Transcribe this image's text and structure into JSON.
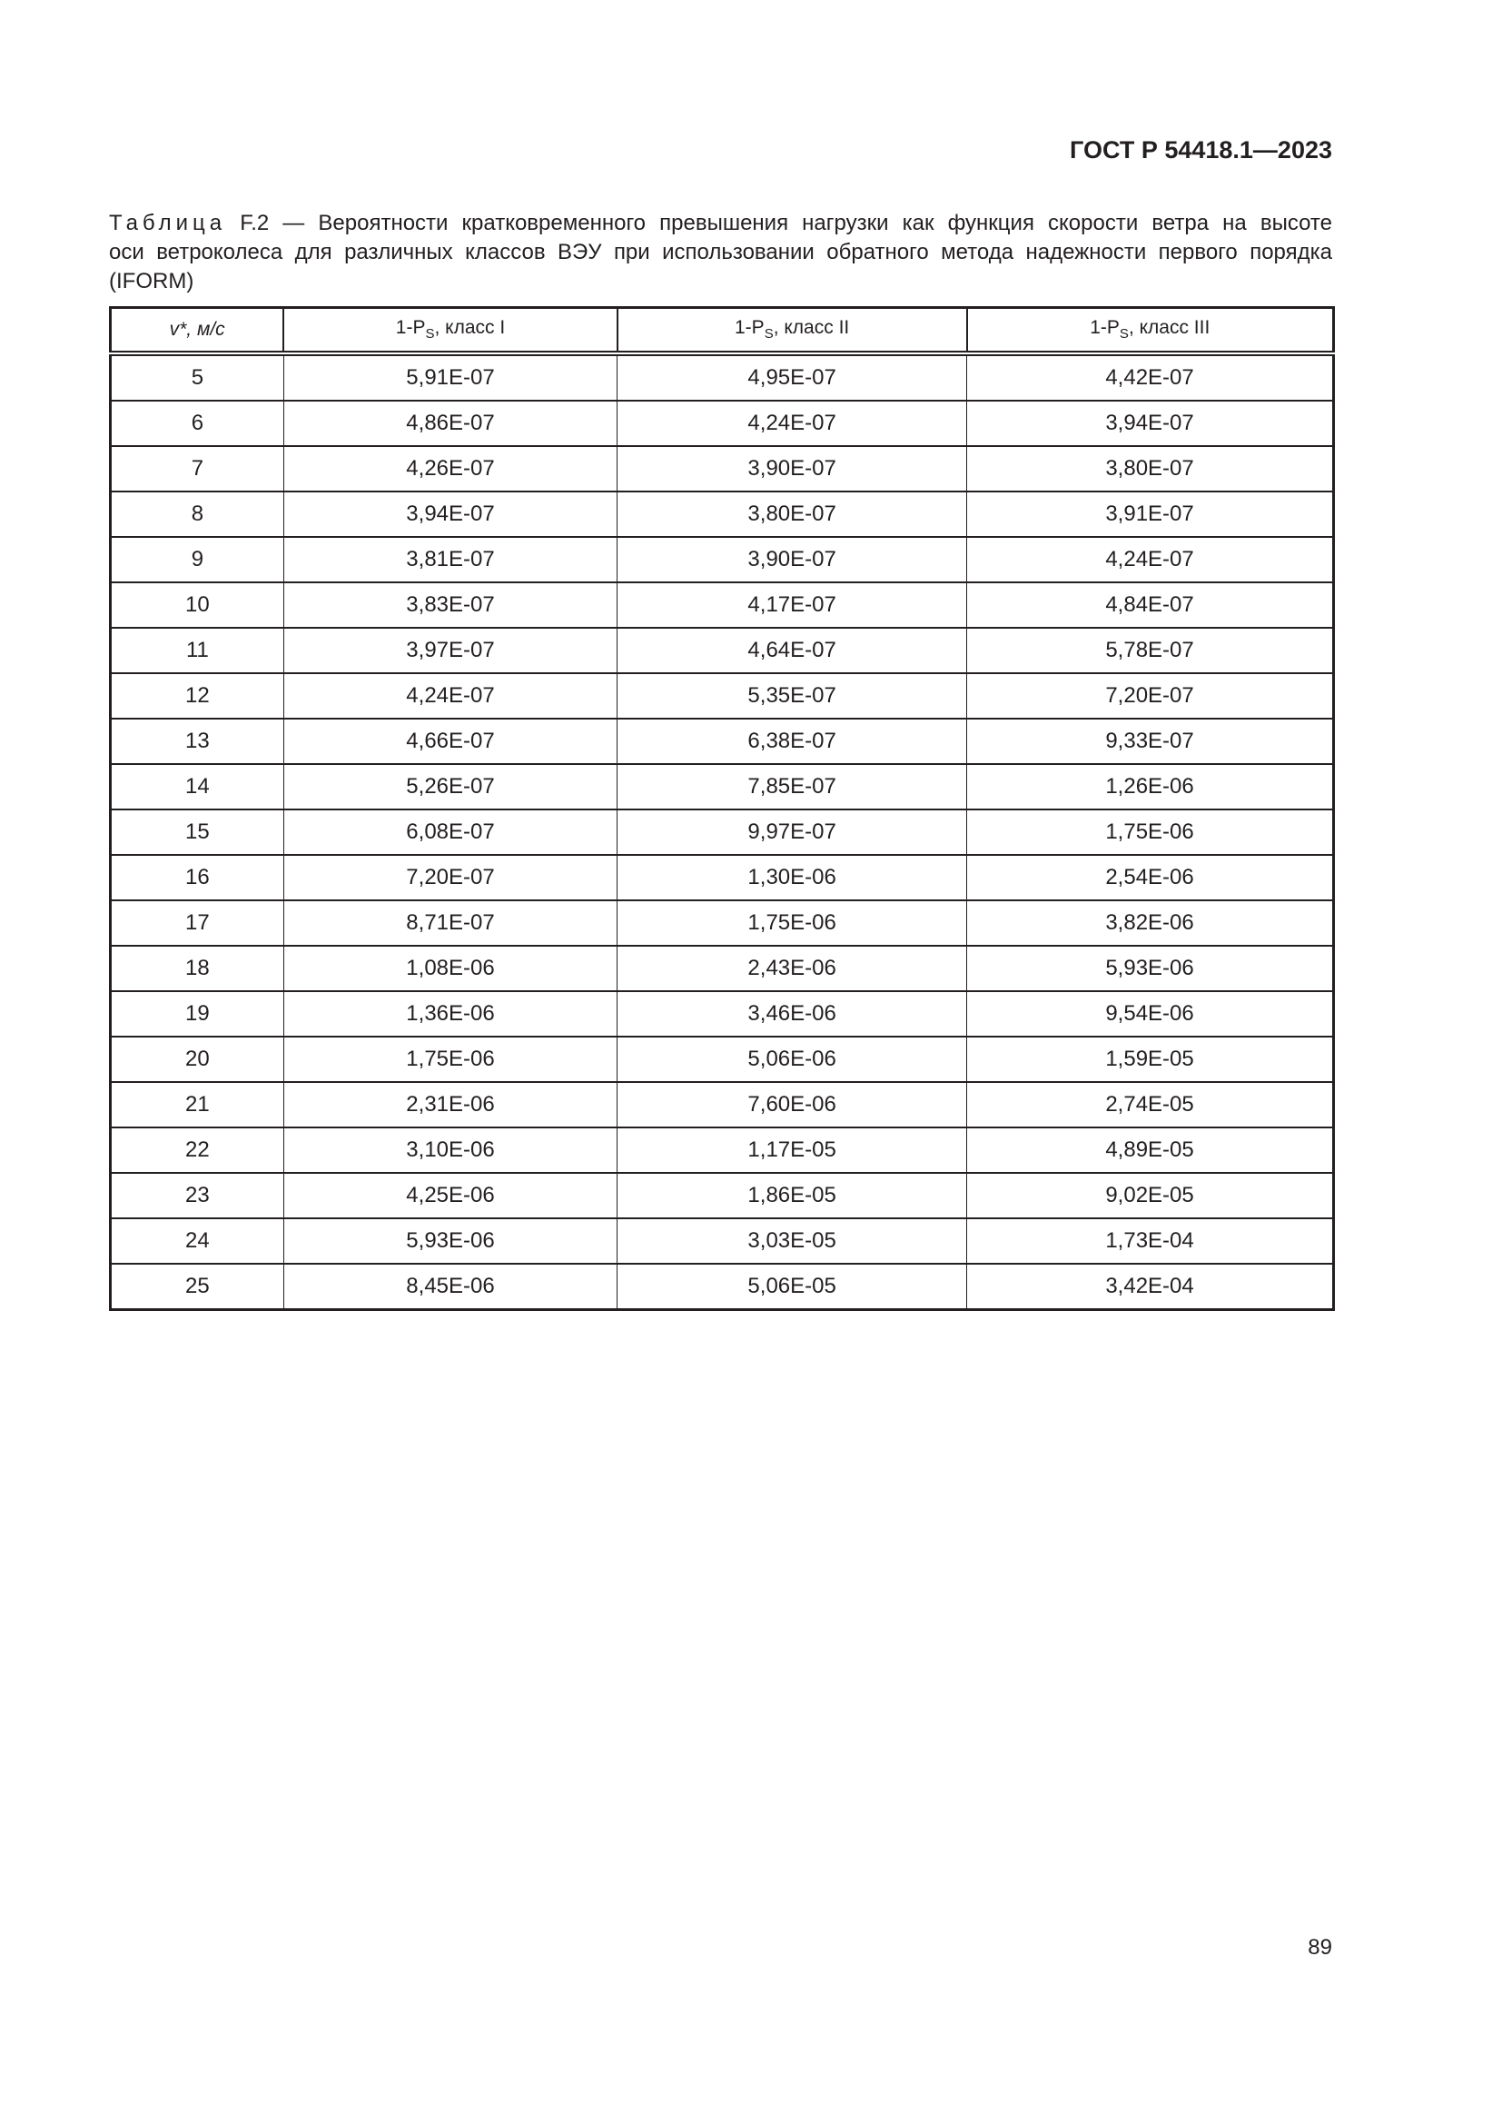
{
  "header": {
    "doc_id": "ГОСТ Р 54418.1—2023"
  },
  "caption": {
    "label": "Таблица",
    "lines": [
      "F.2 — Вероятности кратковременного превышения нагрузки как функция скорости ветра на высоте",
      "оси ветроколеса для различных классов ВЭУ при использовании обратного метода надежности первого порядка",
      "(IFORM)"
    ]
  },
  "table": {
    "headers": [
      {
        "pre": "v*, м/с",
        "sub": "",
        "post": ""
      },
      {
        "pre": "1-P",
        "sub": "S",
        "post": ", класс I"
      },
      {
        "pre": "1-P",
        "sub": "S",
        "post": ", класс II"
      },
      {
        "pre": "1-P",
        "sub": "S",
        "post": ", класс III"
      }
    ],
    "rows": [
      [
        "5",
        "5,91E-07",
        "4,95E-07",
        "4,42E-07"
      ],
      [
        "6",
        "4,86E-07",
        "4,24E-07",
        "3,94E-07"
      ],
      [
        "7",
        "4,26E-07",
        "3,90E-07",
        "3,80E-07"
      ],
      [
        "8",
        "3,94E-07",
        "3,80E-07",
        "3,91E-07"
      ],
      [
        "9",
        "3,81E-07",
        "3,90E-07",
        "4,24E-07"
      ],
      [
        "10",
        "3,83E-07",
        "4,17E-07",
        "4,84E-07"
      ],
      [
        "11",
        "3,97E-07",
        "4,64E-07",
        "5,78E-07"
      ],
      [
        "12",
        "4,24E-07",
        "5,35E-07",
        "7,20E-07"
      ],
      [
        "13",
        "4,66E-07",
        "6,38E-07",
        "9,33E-07"
      ],
      [
        "14",
        "5,26E-07",
        "7,85E-07",
        "1,26E-06"
      ],
      [
        "15",
        "6,08E-07",
        "9,97E-07",
        "1,75E-06"
      ],
      [
        "16",
        "7,20E-07",
        "1,30E-06",
        "2,54E-06"
      ],
      [
        "17",
        "8,71E-07",
        "1,75E-06",
        "3,82E-06"
      ],
      [
        "18",
        "1,08E-06",
        "2,43E-06",
        "5,93E-06"
      ],
      [
        "19",
        "1,36E-06",
        "3,46E-06",
        "9,54E-06"
      ],
      [
        "20",
        "1,75E-06",
        "5,06E-06",
        "1,59E-05"
      ],
      [
        "21",
        "2,31E-06",
        "7,60E-06",
        "2,74E-05"
      ],
      [
        "22",
        "3,10E-06",
        "1,17E-05",
        "4,89E-05"
      ],
      [
        "23",
        "4,25E-06",
        "1,86E-05",
        "9,02E-05"
      ],
      [
        "24",
        "5,93E-06",
        "3,03E-05",
        "1,73E-04"
      ],
      [
        "25",
        "8,45E-06",
        "5,06E-05",
        "3,42E-04"
      ]
    ]
  },
  "footer": {
    "page_number": "89"
  }
}
